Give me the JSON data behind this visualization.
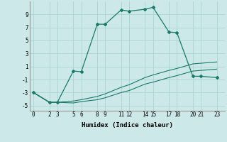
{
  "xlabel": "Humidex (Indice chaleur)",
  "background_color": "#cce8e8",
  "grid_color": "#aad4d4",
  "line_color": "#1a7a6a",
  "x_ticks": [
    0,
    2,
    3,
    5,
    6,
    8,
    9,
    11,
    12,
    14,
    15,
    17,
    18,
    20,
    21,
    23
  ],
  "ylim": [
    -5.8,
    11.0
  ],
  "xlim": [
    -0.5,
    24.0
  ],
  "yticks": [
    -5,
    -3,
    -1,
    1,
    3,
    5,
    7,
    9
  ],
  "lines": [
    {
      "x": [
        0,
        2,
        3,
        5,
        6,
        8,
        9,
        11,
        12,
        14,
        15,
        17,
        18,
        20,
        21,
        23
      ],
      "y": [
        -3,
        -4.5,
        -4.5,
        0.3,
        0.2,
        7.5,
        7.5,
        9.7,
        9.5,
        9.8,
        10.1,
        6.3,
        6.2,
        -0.5,
        -0.5,
        -0.7
      ],
      "marker": true,
      "linestyle": "-"
    },
    {
      "x": [
        0,
        2,
        3,
        5,
        6,
        8,
        9,
        11,
        12,
        14,
        15,
        17,
        18,
        20,
        21,
        23
      ],
      "y": [
        -3,
        -4.5,
        -4.5,
        -4.3,
        -4.1,
        -3.6,
        -3.2,
        -2.2,
        -1.8,
        -0.7,
        -0.3,
        0.4,
        0.7,
        1.4,
        1.5,
        1.7
      ],
      "marker": false,
      "linestyle": "-"
    },
    {
      "x": [
        0,
        2,
        3,
        5,
        6,
        8,
        9,
        11,
        12,
        14,
        15,
        17,
        18,
        20,
        21,
        23
      ],
      "y": [
        -3,
        -4.5,
        -4.5,
        -4.6,
        -4.4,
        -4.1,
        -3.8,
        -3.0,
        -2.7,
        -1.7,
        -1.4,
        -0.7,
        -0.4,
        0.3,
        0.4,
        0.6
      ],
      "marker": false,
      "linestyle": "-"
    }
  ]
}
